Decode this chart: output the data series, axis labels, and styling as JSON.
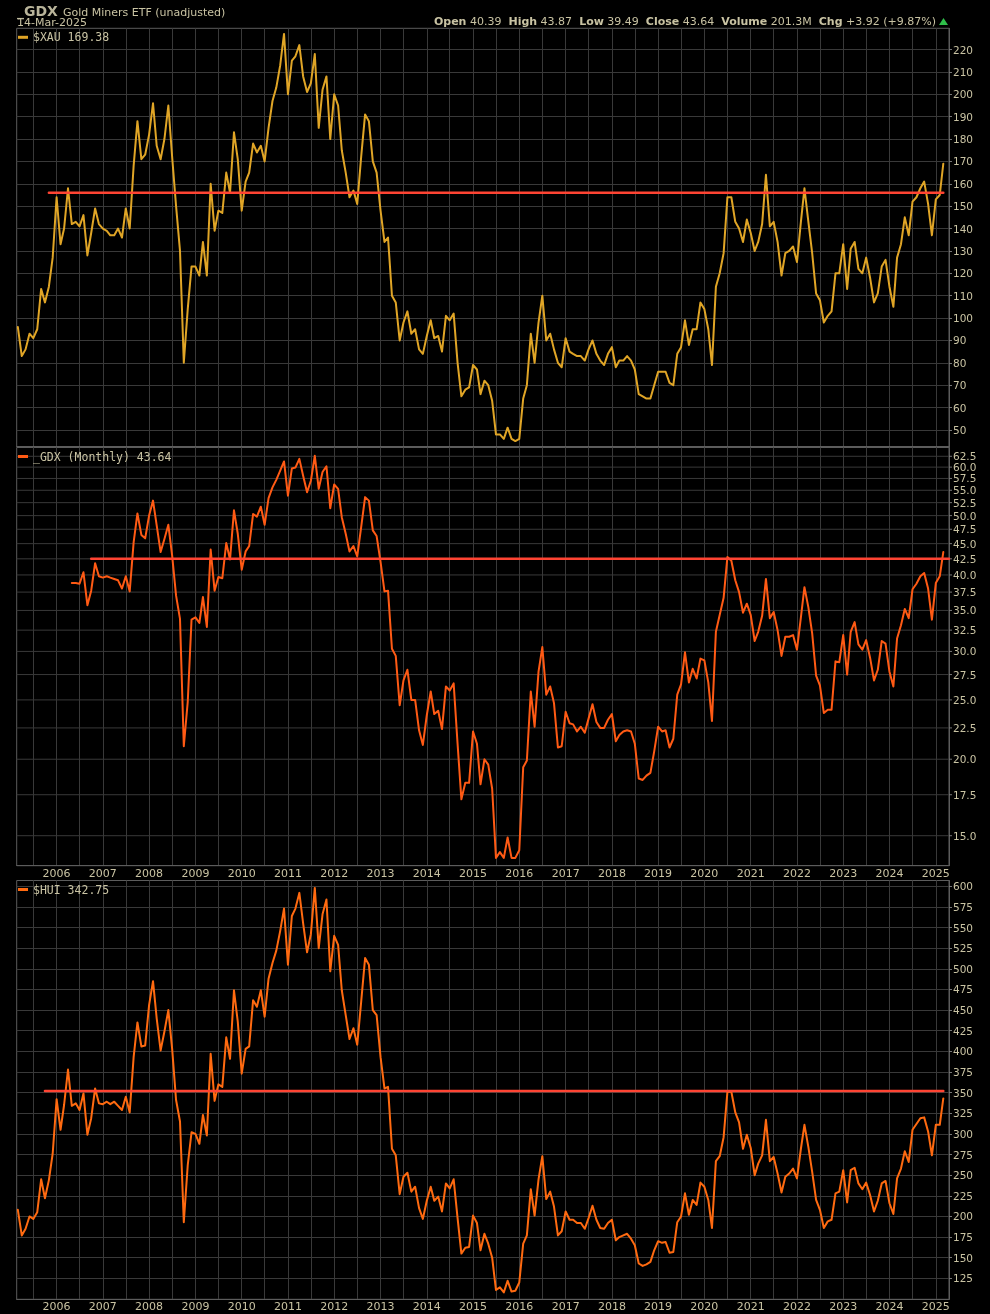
{
  "chart_data": [
    {
      "type": "line",
      "title": "_GDX",
      "subtitle": "Gold Miners ETF (unadjusted)",
      "annotations": [
        "14-Mar-2025",
        "Open 40.39",
        "High 43.87",
        "Low 39.49",
        "Close 43.64",
        "Volume 201.3M",
        "Chg +3.92 (+9.87%)"
      ],
      "x": [
        "2005-03",
        "2005-04",
        "2005-05",
        "2005-06",
        "2005-07",
        "2005-08",
        "2005-09",
        "2005-10",
        "2005-11",
        "2005-12",
        "2006-01",
        "2006-02",
        "2006-03",
        "2006-04",
        "2006-05",
        "2006-06",
        "2006-07",
        "2006-08",
        "2006-09",
        "2006-10",
        "2006-11",
        "2006-12",
        "2007-01",
        "2007-02",
        "2007-03",
        "2007-04",
        "2007-05",
        "2007-06",
        "2007-07",
        "2007-08",
        "2007-09",
        "2007-10",
        "2007-11",
        "2007-12",
        "2008-01",
        "2008-02",
        "2008-03",
        "2008-04",
        "2008-05",
        "2008-06",
        "2008-07",
        "2008-08",
        "2008-09",
        "2008-10",
        "2008-11",
        "2008-12",
        "2009-01",
        "2009-02",
        "2009-03",
        "2009-04",
        "2009-05",
        "2009-06",
        "2009-07",
        "2009-08",
        "2009-09",
        "2009-10",
        "2009-11",
        "2009-12",
        "2010-01",
        "2010-02",
        "2010-03",
        "2010-04",
        "2010-05",
        "2010-06",
        "2010-07",
        "2010-08",
        "2010-09",
        "2010-10",
        "2010-11",
        "2010-12",
        "2011-01",
        "2011-02",
        "2011-03",
        "2011-04",
        "2011-05",
        "2011-06",
        "2011-07",
        "2011-08",
        "2011-09",
        "2011-10",
        "2011-11",
        "2011-12",
        "2012-01",
        "2012-02",
        "2012-03",
        "2012-04",
        "2012-05",
        "2012-06",
        "2012-07",
        "2012-08",
        "2012-09",
        "2012-10",
        "2012-11",
        "2012-12",
        "2013-01",
        "2013-02",
        "2013-03",
        "2013-04",
        "2013-05",
        "2013-06",
        "2013-07",
        "2013-08",
        "2013-09",
        "2013-10",
        "2013-11",
        "2013-12",
        "2014-01",
        "2014-02",
        "2014-03",
        "2014-04",
        "2014-05",
        "2014-06",
        "2014-07",
        "2014-08",
        "2014-09",
        "2014-10",
        "2014-11",
        "2014-12",
        "2015-01",
        "2015-02",
        "2015-03",
        "2015-04",
        "2015-05",
        "2015-06",
        "2015-07",
        "2015-08",
        "2015-09",
        "2015-10",
        "2015-11",
        "2015-12",
        "2016-01",
        "2016-02",
        "2016-03",
        "2016-04",
        "2016-05",
        "2016-06",
        "2016-07",
        "2016-08",
        "2016-09",
        "2016-10",
        "2016-11",
        "2016-12",
        "2017-01",
        "2017-02",
        "2017-03",
        "2017-04",
        "2017-05",
        "2017-06",
        "2017-07",
        "2017-08",
        "2017-09",
        "2017-10",
        "2017-11",
        "2017-12",
        "2018-01",
        "2018-02",
        "2018-03",
        "2018-04",
        "2018-05",
        "2018-06",
        "2018-07",
        "2018-08",
        "2018-09",
        "2018-10",
        "2018-11",
        "2018-12",
        "2019-01",
        "2019-02",
        "2019-03",
        "2019-04",
        "2019-05",
        "2019-06",
        "2019-07",
        "2019-08",
        "2019-09",
        "2019-10",
        "2019-11",
        "2019-12",
        "2020-01",
        "2020-02",
        "2020-03",
        "2020-04",
        "2020-05",
        "2020-06",
        "2020-07",
        "2020-08",
        "2020-09",
        "2020-10",
        "2020-11",
        "2020-12",
        "2021-01",
        "2021-02",
        "2021-03",
        "2021-04",
        "2021-05",
        "2021-06",
        "2021-07",
        "2021-08",
        "2021-09",
        "2021-10",
        "2021-11",
        "2021-12",
        "2022-01",
        "2022-02",
        "2022-03",
        "2022-04",
        "2022-05",
        "2022-06",
        "2022-07",
        "2022-08",
        "2022-09",
        "2022-10",
        "2022-11",
        "2022-12",
        "2023-01",
        "2023-02",
        "2023-03",
        "2023-04",
        "2023-05",
        "2023-06",
        "2023-07",
        "2023-08",
        "2023-09",
        "2023-10",
        "2023-11",
        "2023-12",
        "2024-01",
        "2024-02",
        "2024-03",
        "2024-04",
        "2024-05",
        "2024-06",
        "2024-07",
        "2024-08",
        "2024-09",
        "2024-10",
        "2024-11",
        "2024-12",
        "2025-01",
        "2025-02",
        "2025-03"
      ],
      "series": [
        {
          "name": "$XAU 169.38",
          "color": "#e0a526",
          "values": [
            96,
            83,
            86,
            93,
            91,
            95,
            113,
            107,
            114,
            127,
            154,
            133,
            140,
            158,
            142,
            143,
            141,
            146,
            128,
            138,
            149,
            142,
            140,
            139,
            137,
            137,
            140,
            136,
            149,
            140,
            168,
            188,
            171,
            173,
            182,
            196,
            177,
            171,
            180,
            195,
            172,
            150,
            130,
            80,
            104,
            123,
            123,
            119,
            134,
            119,
            160,
            139,
            148,
            147,
            165,
            156,
            183,
            171,
            148,
            161,
            165,
            178,
            174,
            177,
            170,
            185,
            197,
            203,
            213,
            227,
            200,
            215,
            217,
            222,
            208,
            201,
            205,
            218,
            185,
            202,
            208,
            180,
            200,
            195,
            175,
            165,
            154,
            157,
            151,
            172,
            191,
            188,
            170,
            165,
            148,
            134,
            136,
            110,
            107,
            90,
            98,
            103,
            93,
            95,
            86,
            84,
            92,
            99,
            91,
            92,
            85,
            101,
            99,
            102,
            80,
            65,
            68,
            69,
            79,
            77,
            66,
            72,
            70,
            63,
            48,
            48,
            46,
            51,
            46,
            45,
            46,
            64,
            70,
            93,
            80,
            98,
            110,
            90,
            93,
            86,
            80,
            78,
            91,
            85,
            84,
            83,
            83,
            81,
            86,
            90,
            84,
            81,
            79,
            84,
            87,
            78,
            81,
            81,
            83,
            81,
            77,
            66,
            65,
            64,
            64,
            70,
            76,
            76,
            76,
            71,
            70,
            84,
            87,
            99,
            88,
            95,
            95,
            107,
            104,
            95,
            79,
            114,
            120,
            129,
            154,
            154,
            143,
            140,
            134,
            144,
            138,
            130,
            134,
            142,
            164,
            141,
            143,
            134,
            119,
            129,
            130,
            132,
            125,
            143,
            158,
            143,
            129,
            111,
            108,
            98,
            101,
            103,
            120,
            120,
            133,
            113,
            131,
            134,
            122,
            120,
            127,
            118,
            107,
            111,
            123,
            126,
            114,
            105,
            127,
            133,
            145,
            137,
            152,
            154,
            158,
            161,
            151,
            137,
            153,
            155,
            169
          ]
        },
        {
          "color": "#ff4433",
          "x": [
            "2005-11",
            "2025-03"
          ],
          "values": [
            156,
            156
          ]
        }
      ],
      "xlim": [
        "2005-02-20",
        "2025-04-15"
      ],
      "ylim": [
        42.5,
        229.5
      ],
      "xticks": [
        {
          "value": "2005-07",
          "label": null
        },
        "2006",
        {
          "value": "2006-07",
          "label": null
        },
        "2007",
        {
          "value": "2007-07",
          "label": null
        },
        "2008",
        {
          "value": "2008-07",
          "label": null
        },
        "2009",
        {
          "value": "2009-07",
          "label": null
        },
        "2010",
        {
          "value": "2010-07",
          "label": null
        },
        "2011",
        {
          "value": "2011-07",
          "label": null
        },
        "2012",
        {
          "value": "2012-07",
          "label": null
        },
        "2013",
        {
          "value": "2013-07",
          "label": null
        },
        "2014",
        {
          "value": "2014-07",
          "label": null
        },
        "2015",
        {
          "value": "2015-07",
          "label": null
        },
        "2016",
        {
          "value": "2016-07",
          "label": null
        },
        "2017",
        {
          "value": "2017-07",
          "label": null
        },
        "2018",
        {
          "value": "2018-07",
          "label": null
        },
        "2019",
        {
          "value": "2019-07",
          "label": null
        },
        "2020",
        {
          "value": "2020-07",
          "label": null
        },
        "2021",
        {
          "value": "2021-07",
          "label": null
        },
        "2022",
        {
          "value": "2022-07",
          "label": null
        },
        "2023",
        {
          "value": "2023-07",
          "label": null
        },
        "2024",
        {
          "value": "2024-07",
          "label": null
        },
        "2025"
      ],
      "yticks": [
        50,
        60,
        70,
        80,
        90,
        100,
        110,
        120,
        130,
        140,
        150,
        160,
        170,
        180,
        190,
        200,
        210,
        220
      ],
      "grid": true,
      "legend": "top left",
      "tick_labels": "y"
    },
    {
      "type": "line",
      "log": true,
      "series": [
        {
          "name": "_GDX (Monthly) 43.64",
          "color": "#ff5a14",
          "x": [
            "2006-05",
            "2006-06",
            "2006-07",
            "2006-08",
            "2006-09",
            "2006-10",
            "2006-11",
            "2006-12",
            "2007-01",
            "2007-02",
            "2007-03",
            "2007-04",
            "2007-05",
            "2007-06",
            "2007-07",
            "2007-08",
            "2007-09",
            "2007-10",
            "2007-11",
            "2007-12",
            "2008-01",
            "2008-02",
            "2008-03",
            "2008-04",
            "2008-05",
            "2008-06",
            "2008-07",
            "2008-08",
            "2008-09",
            "2008-10",
            "2008-11",
            "2008-12",
            "2009-01",
            "2009-02",
            "2009-03",
            "2009-04",
            "2009-05",
            "2009-06",
            "2009-07",
            "2009-08",
            "2009-09",
            "2009-10",
            "2009-11",
            "2009-12",
            "2010-01",
            "2010-02",
            "2010-03",
            "2010-04",
            "2010-05",
            "2010-06",
            "2010-07",
            "2010-08",
            "2010-09",
            "2010-10",
            "2010-11",
            "2010-12",
            "2011-01",
            "2011-02",
            "2011-03",
            "2011-04",
            "2011-05",
            "2011-06",
            "2011-07",
            "2011-08",
            "2011-09",
            "2011-10",
            "2011-11",
            "2011-12",
            "2012-01",
            "2012-02",
            "2012-03",
            "2012-04",
            "2012-05",
            "2012-06",
            "2012-07",
            "2012-08",
            "2012-09",
            "2012-10",
            "2012-11",
            "2012-12",
            "2013-01",
            "2013-02",
            "2013-03",
            "2013-04",
            "2013-05",
            "2013-06",
            "2013-07",
            "2013-08",
            "2013-09",
            "2013-10",
            "2013-11",
            "2013-12",
            "2014-01",
            "2014-02",
            "2014-03",
            "2014-04",
            "2014-05",
            "2014-06",
            "2014-07",
            "2014-08",
            "2014-09",
            "2014-10",
            "2014-11",
            "2014-12",
            "2015-01",
            "2015-02",
            "2015-03",
            "2015-04",
            "2015-05",
            "2015-06",
            "2015-07",
            "2015-08",
            "2015-09",
            "2015-10",
            "2015-11",
            "2015-12",
            "2016-01",
            "2016-02",
            "2016-03",
            "2016-04",
            "2016-05",
            "2016-06",
            "2016-07",
            "2016-08",
            "2016-09",
            "2016-10",
            "2016-11",
            "2016-12",
            "2017-01",
            "2017-02",
            "2017-03",
            "2017-04",
            "2017-05",
            "2017-06",
            "2017-07",
            "2017-08",
            "2017-09",
            "2017-10",
            "2017-11",
            "2017-12",
            "2018-01",
            "2018-02",
            "2018-03",
            "2018-04",
            "2018-05",
            "2018-06",
            "2018-07",
            "2018-08",
            "2018-09",
            "2018-10",
            "2018-11",
            "2018-12",
            "2019-01",
            "2019-02",
            "2019-03",
            "2019-04",
            "2019-05",
            "2019-06",
            "2019-07",
            "2019-08",
            "2019-09",
            "2019-10",
            "2019-11",
            "2019-12",
            "2020-01",
            "2020-02",
            "2020-03",
            "2020-04",
            "2020-05",
            "2020-06",
            "2020-07",
            "2020-08",
            "2020-09",
            "2020-10",
            "2020-11",
            "2020-12",
            "2021-01",
            "2021-02",
            "2021-03",
            "2021-04",
            "2021-05",
            "2021-06",
            "2021-07",
            "2021-08",
            "2021-09",
            "2021-10",
            "2021-11",
            "2021-12",
            "2022-01",
            "2022-02",
            "2022-03",
            "2022-04",
            "2022-05",
            "2022-06",
            "2022-07",
            "2022-08",
            "2022-09",
            "2022-10",
            "2022-11",
            "2022-12",
            "2023-01",
            "2023-02",
            "2023-03",
            "2023-04",
            "2023-05",
            "2023-06",
            "2023-07",
            "2023-08",
            "2023-09",
            "2023-10",
            "2023-11",
            "2023-12",
            "2024-01",
            "2024-02",
            "2024-03",
            "2024-04",
            "2024-05",
            "2024-06",
            "2024-07",
            "2024-08",
            "2024-09",
            "2024-10",
            "2024-11",
            "2024-12",
            "2025-01",
            "2025-02",
            "2025-03"
          ],
          "values": [
            38.8,
            38.8,
            38.7,
            40.4,
            35.7,
            37.7,
            41.8,
            39.8,
            39.6,
            39.8,
            39.6,
            39.4,
            39.2,
            38.0,
            39.8,
            37.6,
            45.2,
            50.4,
            46.5,
            45.9,
            50.0,
            52.9,
            48.2,
            43.6,
            45.8,
            48.3,
            43.0,
            37.0,
            33.9,
            21.0,
            24.8,
            33.8,
            34.1,
            33.4,
            36.8,
            32.9,
            44.0,
            37.7,
            39.7,
            39.5,
            45.1,
            42.4,
            51.0,
            46.7,
            40.8,
            43.7,
            44.6,
            50.3,
            49.8,
            51.7,
            48.3,
            53.4,
            55.6,
            57.2,
            59.2,
            61.3,
            53.9,
            59.7,
            59.9,
            61.9,
            58.1,
            54.6,
            57.0,
            62.6,
            55.3,
            58.9,
            60.2,
            51.4,
            56.2,
            55.3,
            49.7,
            46.7,
            43.7,
            44.6,
            42.9,
            47.9,
            53.6,
            52.9,
            47.3,
            46.3,
            42.0,
            37.6,
            37.7,
            30.3,
            29.5,
            24.5,
            26.9,
            28.0,
            25.0,
            25.0,
            22.3,
            21.1,
            23.6,
            25.8,
            23.7,
            24.0,
            22.4,
            26.3,
            25.9,
            26.6,
            21.2,
            17.2,
            18.3,
            18.3,
            22.2,
            21.2,
            18.2,
            20.0,
            19.6,
            17.9,
            13.8,
            14.1,
            13.8,
            14.9,
            13.8,
            13.8,
            14.2,
            19.4,
            19.9,
            25.8,
            22.6,
            27.8,
            30.5,
            25.5,
            26.3,
            24.7,
            20.9,
            21.0,
            23.9,
            22.9,
            22.8,
            22.2,
            22.6,
            22.1,
            23.3,
            24.6,
            23.0,
            22.5,
            22.5,
            23.2,
            23.7,
            21.4,
            21.9,
            22.2,
            22.3,
            22.2,
            21.2,
            18.6,
            18.5,
            18.8,
            19.0,
            20.6,
            22.6,
            22.2,
            22.3,
            20.9,
            21.6,
            25.5,
            26.5,
            29.9,
            26.7,
            28.1,
            27.1,
            29.2,
            29.0,
            26.7,
            23.1,
            32.3,
            34.4,
            36.7,
            42.8,
            42.2,
            39.2,
            37.5,
            34.7,
            35.9,
            34.4,
            31.2,
            32.3,
            34.3,
            39.4,
            34.0,
            34.8,
            32.5,
            29.5,
            31.7,
            31.7,
            31.9,
            30.2,
            34.1,
            38.2,
            35.4,
            32.1,
            27.4,
            26.4,
            23.8,
            24.1,
            24.1,
            28.9,
            28.8,
            31.9,
            27.5,
            32.3,
            33.5,
            30.8,
            30.2,
            31.3,
            29.3,
            26.9,
            28.0,
            31.2,
            30.9,
            27.8,
            26.3,
            31.5,
            33.1,
            35.2,
            34.0,
            37.9,
            38.7,
            39.8,
            40.3,
            38.0,
            33.8,
            38.8,
            39.8,
            43.6
          ]
        },
        {
          "color": "#ff4433",
          "x": [
            "2006-10",
            "2025-04-15"
          ],
          "values": [
            42.5,
            42.5
          ]
        }
      ],
      "xlim": [
        "2005-02-20",
        "2025-04-15"
      ],
      "ylim": [
        13.4,
        64.6
      ],
      "xticks": [
        {
          "value": "2005-07",
          "label": null
        },
        "2006",
        {
          "value": "2006-07",
          "label": null
        },
        "2007",
        {
          "value": "2007-07",
          "label": null
        },
        "2008",
        {
          "value": "2008-07",
          "label": null
        },
        "2009",
        {
          "value": "2009-07",
          "label": null
        },
        "2010",
        {
          "value": "2010-07",
          "label": null
        },
        "2011",
        {
          "value": "2011-07",
          "label": null
        },
        "2012",
        {
          "value": "2012-07",
          "label": null
        },
        "2013",
        {
          "value": "2013-07",
          "label": null
        },
        "2014",
        {
          "value": "2014-07",
          "label": null
        },
        "2015",
        {
          "value": "2015-07",
          "label": null
        },
        "2016",
        {
          "value": "2016-07",
          "label": null
        },
        "2017",
        {
          "value": "2017-07",
          "label": null
        },
        "2018",
        {
          "value": "2018-07",
          "label": null
        },
        "2019",
        {
          "value": "2019-07",
          "label": null
        },
        "2020",
        {
          "value": "2020-07",
          "label": null
        },
        "2021",
        {
          "value": "2021-07",
          "label": null
        },
        "2022",
        {
          "value": "2022-07",
          "label": null
        },
        "2023",
        {
          "value": "2023-07",
          "label": null
        },
        "2024",
        {
          "value": "2024-07",
          "label": null
        },
        "2025"
      ],
      "yticks": [
        {
          "value": 15,
          "label": "15.0"
        },
        17.5,
        {
          "value": 20,
          "label": "20.0"
        },
        22.5,
        {
          "value": 25,
          "label": "25.0"
        },
        27.5,
        {
          "value": 30,
          "label": "30.0"
        },
        32.5,
        {
          "value": 35,
          "label": "35.0"
        },
        37.5,
        {
          "value": 40,
          "label": "40.0"
        },
        42.5,
        {
          "value": 45,
          "label": "45.0"
        },
        47.5,
        {
          "value": 50,
          "label": "50.0"
        },
        52.5,
        {
          "value": 55,
          "label": "55.0"
        },
        57.5,
        {
          "value": 60,
          "label": "60.0"
        },
        62.5
      ],
      "grid": true,
      "legend": "top left"
    },
    {
      "type": "line",
      "x": [
        "2005-03",
        "2005-04",
        "2005-05",
        "2005-06",
        "2005-07",
        "2005-08",
        "2005-09",
        "2005-10",
        "2005-11",
        "2005-12",
        "2006-01",
        "2006-02",
        "2006-03",
        "2006-04",
        "2006-05",
        "2006-06",
        "2006-07",
        "2006-08",
        "2006-09",
        "2006-10",
        "2006-11",
        "2006-12",
        "2007-01",
        "2007-02",
        "2007-03",
        "2007-04",
        "2007-05",
        "2007-06",
        "2007-07",
        "2007-08",
        "2007-09",
        "2007-10",
        "2007-11",
        "2007-12",
        "2008-01",
        "2008-02",
        "2008-03",
        "2008-04",
        "2008-05",
        "2008-06",
        "2008-07",
        "2008-08",
        "2008-09",
        "2008-10",
        "2008-11",
        "2008-12",
        "2009-01",
        "2009-02",
        "2009-03",
        "2009-04",
        "2009-05",
        "2009-06",
        "2009-07",
        "2009-08",
        "2009-09",
        "2009-10",
        "2009-11",
        "2009-12",
        "2010-01",
        "2010-02",
        "2010-03",
        "2010-04",
        "2010-05",
        "2010-06",
        "2010-07",
        "2010-08",
        "2010-09",
        "2010-10",
        "2010-11",
        "2010-12",
        "2011-01",
        "2011-02",
        "2011-03",
        "2011-04",
        "2011-05",
        "2011-06",
        "2011-07",
        "2011-08",
        "2011-09",
        "2011-10",
        "2011-11",
        "2011-12",
        "2012-01",
        "2012-02",
        "2012-03",
        "2012-04",
        "2012-05",
        "2012-06",
        "2012-07",
        "2012-08",
        "2012-09",
        "2012-10",
        "2012-11",
        "2012-12",
        "2013-01",
        "2013-02",
        "2013-03",
        "2013-04",
        "2013-05",
        "2013-06",
        "2013-07",
        "2013-08",
        "2013-09",
        "2013-10",
        "2013-11",
        "2013-12",
        "2014-01",
        "2014-02",
        "2014-03",
        "2014-04",
        "2014-05",
        "2014-06",
        "2014-07",
        "2014-08",
        "2014-09",
        "2014-10",
        "2014-11",
        "2014-12",
        "2015-01",
        "2015-02",
        "2015-03",
        "2015-04",
        "2015-05",
        "2015-06",
        "2015-07",
        "2015-08",
        "2015-09",
        "2015-10",
        "2015-11",
        "2015-12",
        "2016-01",
        "2016-02",
        "2016-03",
        "2016-04",
        "2016-05",
        "2016-06",
        "2016-07",
        "2016-08",
        "2016-09",
        "2016-10",
        "2016-11",
        "2016-12",
        "2017-01",
        "2017-02",
        "2017-03",
        "2017-04",
        "2017-05",
        "2017-06",
        "2017-07",
        "2017-08",
        "2017-09",
        "2017-10",
        "2017-11",
        "2017-12",
        "2018-01",
        "2018-02",
        "2018-03",
        "2018-04",
        "2018-05",
        "2018-06",
        "2018-07",
        "2018-08",
        "2018-09",
        "2018-10",
        "2018-11",
        "2018-12",
        "2019-01",
        "2019-02",
        "2019-03",
        "2019-04",
        "2019-05",
        "2019-06",
        "2019-07",
        "2019-08",
        "2019-09",
        "2019-10",
        "2019-11",
        "2019-12",
        "2020-01",
        "2020-02",
        "2020-03",
        "2020-04",
        "2020-05",
        "2020-06",
        "2020-07",
        "2020-08",
        "2020-09",
        "2020-10",
        "2020-11",
        "2020-12",
        "2021-01",
        "2021-02",
        "2021-03",
        "2021-04",
        "2021-05",
        "2021-06",
        "2021-07",
        "2021-08",
        "2021-09",
        "2021-10",
        "2021-11",
        "2021-12",
        "2022-01",
        "2022-02",
        "2022-03",
        "2022-04",
        "2022-05",
        "2022-06",
        "2022-07",
        "2022-08",
        "2022-09",
        "2022-10",
        "2022-11",
        "2022-12",
        "2023-01",
        "2023-02",
        "2023-03",
        "2023-04",
        "2023-05",
        "2023-06",
        "2023-07",
        "2023-08",
        "2023-09",
        "2023-10",
        "2023-11",
        "2023-12",
        "2024-01",
        "2024-02",
        "2024-03",
        "2024-04",
        "2024-05",
        "2024-06",
        "2024-07",
        "2024-08",
        "2024-09",
        "2024-10",
        "2024-11",
        "2024-12",
        "2025-01",
        "2025-02",
        "2025-03"
      ],
      "series": [
        {
          "name": "$HUI 342.75",
          "color": "#ff6a10",
          "values": [
            208,
            177,
            185,
            200,
            197,
            205,
            245,
            222,
            244,
            276,
            342,
            305,
            335,
            378,
            334,
            337,
            329,
            349,
            299,
            319,
            355,
            337,
            336,
            339,
            336,
            339,
            334,
            329,
            345,
            326,
            393,
            435,
            406,
            407,
            456,
            485,
            440,
            401,
            424,
            450,
            403,
            341,
            315,
            193,
            262,
            302,
            300,
            288,
            323,
            298,
            397,
            340,
            360,
            357,
            417,
            391,
            474,
            436,
            373,
            403,
            406,
            462,
            454,
            474,
            442,
            488,
            507,
            522,
            546,
            573,
            505,
            564,
            573,
            592,
            555,
            520,
            542,
            598,
            525,
            566,
            584,
            497,
            540,
            529,
            474,
            444,
            415,
            428,
            408,
            460,
            513,
            505,
            450,
            444,
            393,
            355,
            357,
            282,
            274,
            227,
            248,
            253,
            230,
            236,
            210,
            197,
            219,
            236,
            219,
            224,
            206,
            240,
            234,
            245,
            198,
            155,
            162,
            163,
            201,
            192,
            159,
            179,
            167,
            150,
            111,
            114,
            108,
            122,
            109,
            110,
            120,
            167,
            177,
            233,
            201,
            245,
            273,
            221,
            230,
            212,
            177,
            182,
            206,
            196,
            196,
            192,
            192,
            185,
            198,
            213,
            196,
            186,
            185,
            192,
            196,
            171,
            175,
            177,
            179,
            173,
            165,
            143,
            140,
            142,
            145,
            159,
            170,
            168,
            169,
            156,
            157,
            193,
            200,
            228,
            202,
            220,
            214,
            241,
            236,
            220,
            186,
            267,
            273,
            296,
            351,
            351,
            326,
            314,
            282,
            299,
            283,
            250,
            264,
            274,
            317,
            267,
            272,
            252,
            229,
            248,
            252,
            258,
            246,
            282,
            311,
            284,
            254,
            220,
            208,
            186,
            194,
            196,
            228,
            230,
            256,
            217,
            256,
            259,
            240,
            233,
            241,
            226,
            206,
            219,
            240,
            243,
            216,
            203,
            246,
            258,
            279,
            266,
            305,
            312,
            319,
            320,
            303,
            274,
            311,
            311,
            343
          ]
        },
        {
          "color": "#ff4433",
          "x": [
            "2005-10",
            "2025-03"
          ],
          "values": [
            352,
            352
          ]
        }
      ],
      "xlim": [
        "2005-02-20",
        "2025-04-15"
      ],
      "ylim": [
        99.6,
        607
      ],
      "xticks": [
        {
          "value": "2005-07",
          "label": null
        },
        "2006",
        {
          "value": "2006-07",
          "label": null
        },
        "2007",
        {
          "value": "2007-07",
          "label": null
        },
        "2008",
        {
          "value": "2008-07",
          "label": null
        },
        "2009",
        {
          "value": "2009-07",
          "label": null
        },
        "2010",
        {
          "value": "2010-07",
          "label": null
        },
        "2011",
        {
          "value": "2011-07",
          "label": null
        },
        "2012",
        {
          "value": "2012-07",
          "label": null
        },
        "2013",
        {
          "value": "2013-07",
          "label": null
        },
        "2014",
        {
          "value": "2014-07",
          "label": null
        },
        "2015",
        {
          "value": "2015-07",
          "label": null
        },
        "2016",
        {
          "value": "2016-07",
          "label": null
        },
        "2017",
        {
          "value": "2017-07",
          "label": null
        },
        "2018",
        {
          "value": "2018-07",
          "label": null
        },
        "2019",
        {
          "value": "2019-07",
          "label": null
        },
        "2020",
        {
          "value": "2020-07",
          "label": null
        },
        "2021",
        {
          "value": "2021-07",
          "label": null
        },
        "2022",
        {
          "value": "2022-07",
          "label": null
        },
        "2023",
        {
          "value": "2023-07",
          "label": null
        },
        "2024",
        {
          "value": "2024-07",
          "label": null
        },
        "2025"
      ],
      "yticks": [
        125,
        150,
        175,
        200,
        225,
        250,
        275,
        300,
        325,
        350,
        375,
        400,
        425,
        450,
        475,
        500,
        525,
        550,
        575,
        600
      ],
      "grid": true,
      "legend": "top left"
    }
  ]
}
